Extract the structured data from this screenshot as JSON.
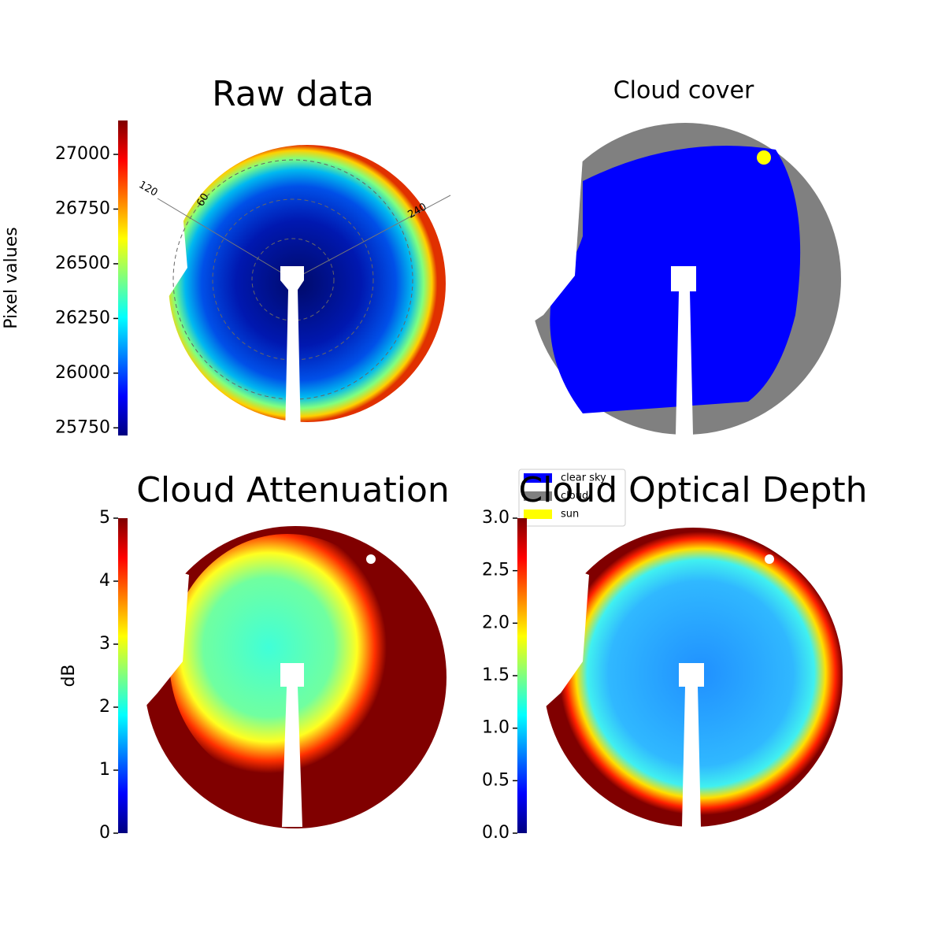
{
  "chart_data": [
    {
      "type": "image",
      "title": "Raw data",
      "annotations": [
        "120",
        "60",
        "240"
      ],
      "colorbar": {
        "label": "Pixel values",
        "colormap": "jet",
        "ylim": [
          25715,
          27155
        ],
        "yticks": [
          25750,
          26000,
          26250,
          26500,
          26750,
          27000
        ]
      }
    },
    {
      "type": "image",
      "title": "Cloud cover",
      "series": [
        {
          "name": "clear sky",
          "color": "#0000ff"
        },
        {
          "name": "cloud",
          "color": "#808080"
        },
        {
          "name": "sun",
          "color": "#ffff00"
        }
      ],
      "legend": "lower left"
    },
    {
      "type": "image",
      "title": "Cloud Attenuation",
      "colorbar": {
        "label": "dB",
        "colormap": "jet",
        "ylim": [
          0,
          5
        ],
        "yticks": [
          0,
          1,
          2,
          3,
          4,
          5
        ]
      }
    },
    {
      "type": "image",
      "title": "Cloud Optical Depth",
      "colorbar": {
        "colormap": "jet",
        "ylim": [
          0,
          3
        ],
        "yticks": [
          {
            "value": 0,
            "label": "0.0"
          },
          0.5,
          {
            "value": 1,
            "label": "1.0"
          },
          1.5,
          {
            "value": 2,
            "label": "2.0"
          },
          2.5,
          {
            "value": 3,
            "label": "3.0"
          }
        ]
      }
    }
  ]
}
